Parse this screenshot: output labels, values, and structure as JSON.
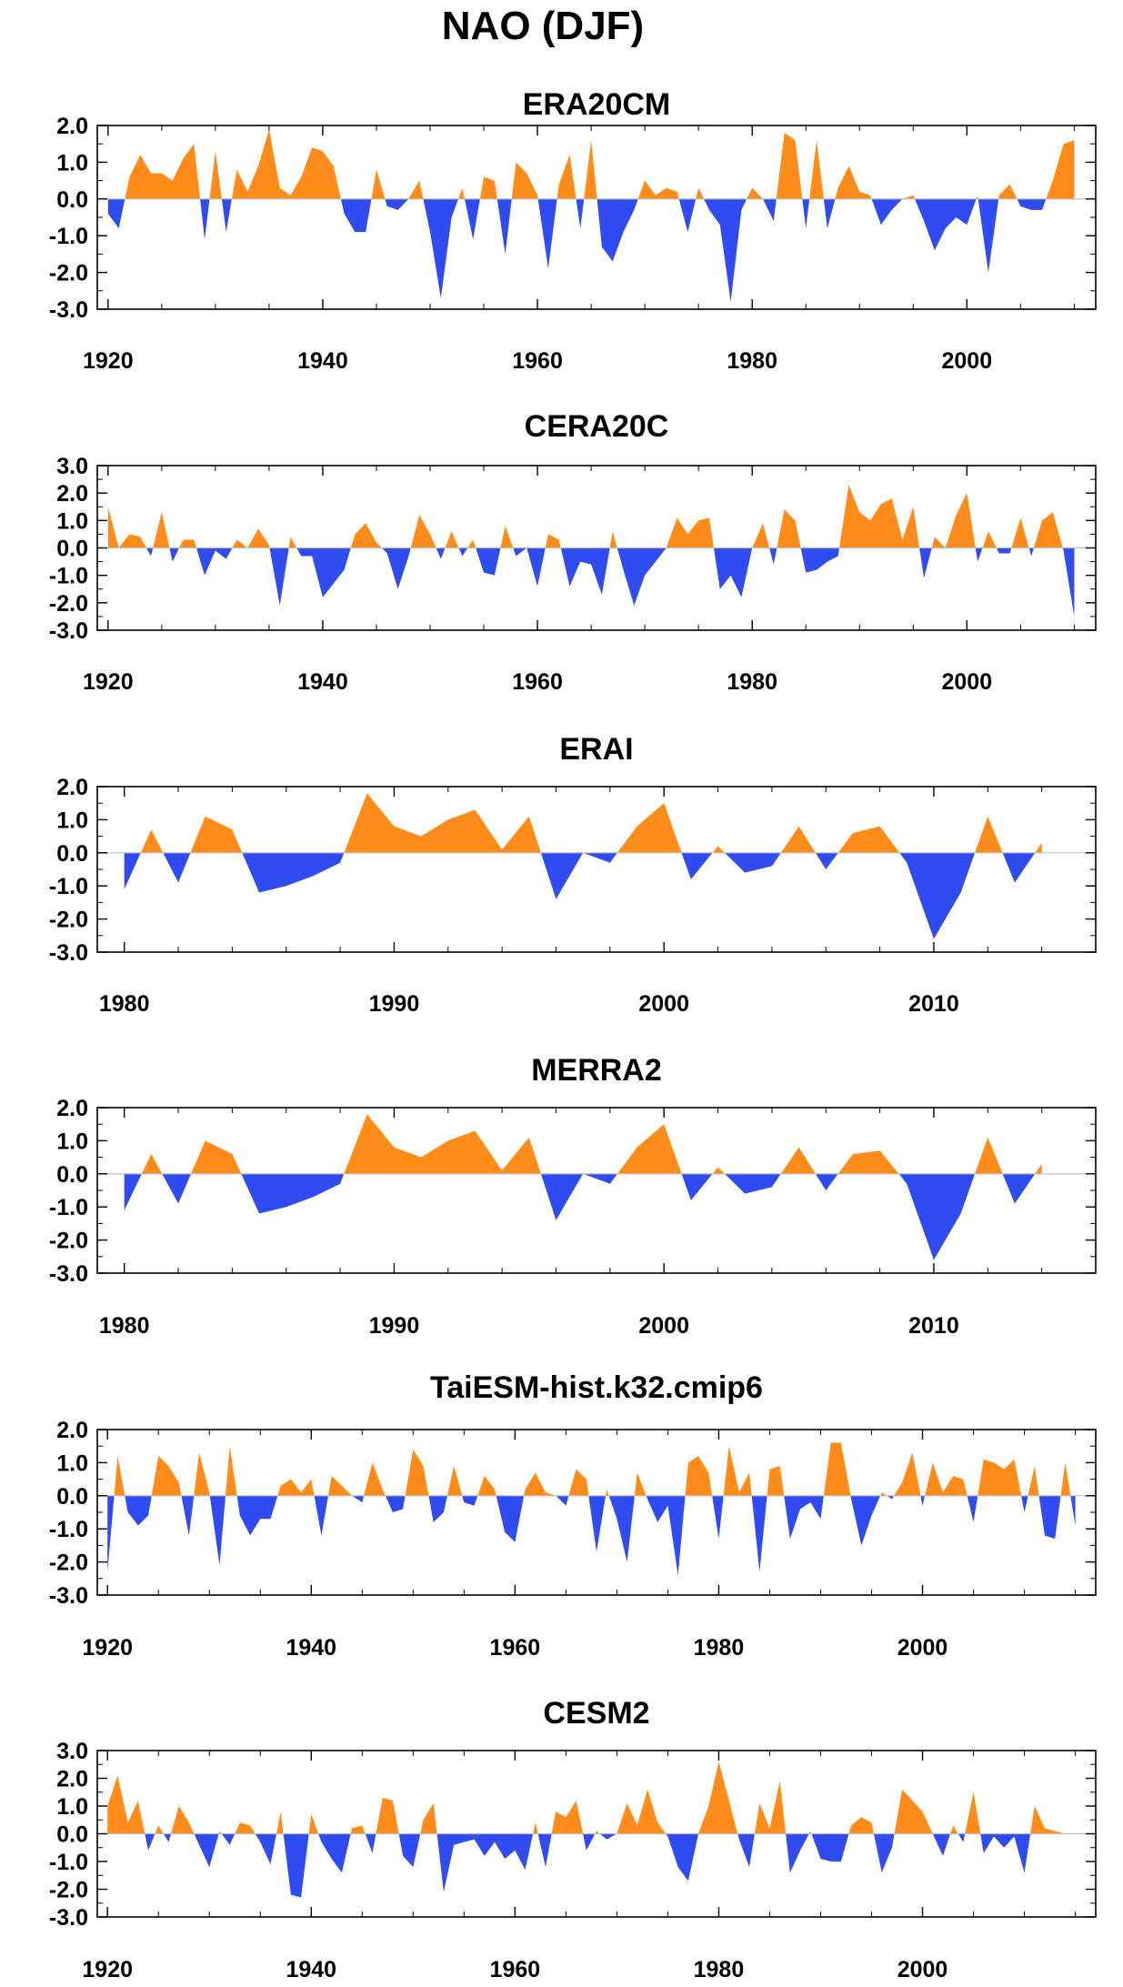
{
  "page": {
    "title": "NAO (DJF)"
  },
  "colors": {
    "positive": "#ff8c1a",
    "negative": "#2f4bf2",
    "axis": "#000000",
    "zero_line": "#bdbdbd"
  },
  "chart_data": [
    {
      "type": "area",
      "title": "ERA20CM",
      "xlim": [
        1919,
        2012
      ],
      "ylim": [
        -3.0,
        2.0
      ],
      "yticks": [
        2.0,
        1.0,
        0.0,
        -1.0,
        -2.0,
        -3.0
      ],
      "ytick_labels": [
        "2.0",
        "1.0",
        "0.0",
        "-1.0",
        "-2.0",
        "-3.0"
      ],
      "xticks": [
        1920,
        1940,
        1960,
        1980,
        2000
      ],
      "xtick_labels": [
        "1920",
        "1940",
        "1960",
        "1980",
        "2000"
      ],
      "x": [
        1920,
        1921,
        1922,
        1923,
        1924,
        1925,
        1926,
        1927,
        1928,
        1929,
        1930,
        1931,
        1932,
        1933,
        1934,
        1935,
        1936,
        1937,
        1938,
        1939,
        1940,
        1941,
        1942,
        1943,
        1944,
        1945,
        1946,
        1947,
        1948,
        1949,
        1950,
        1951,
        1952,
        1953,
        1954,
        1955,
        1956,
        1957,
        1958,
        1959,
        1960,
        1961,
        1962,
        1963,
        1964,
        1965,
        1966,
        1967,
        1968,
        1969,
        1970,
        1971,
        1972,
        1973,
        1974,
        1975,
        1976,
        1977,
        1978,
        1979,
        1980,
        1981,
        1982,
        1983,
        1984,
        1985,
        1986,
        1987,
        1988,
        1989,
        1990,
        1991,
        1992,
        1993,
        1994,
        1995,
        1996,
        1997,
        1998,
        1999,
        2000,
        2001,
        2002,
        2003,
        2004,
        2005,
        2006,
        2007,
        2008,
        2009,
        2010
      ],
      "values": [
        -0.4,
        -0.8,
        0.6,
        1.2,
        0.7,
        0.7,
        0.5,
        1.1,
        1.5,
        -1.1,
        1.3,
        -0.9,
        0.8,
        0.2,
        0.9,
        1.9,
        0.3,
        0.1,
        0.6,
        1.4,
        1.3,
        0.9,
        -0.4,
        -0.9,
        -0.9,
        0.8,
        -0.2,
        -0.3,
        0.0,
        0.5,
        -0.9,
        -2.7,
        -0.5,
        0.3,
        -1.1,
        0.6,
        0.5,
        -1.5,
        1.0,
        0.7,
        0.1,
        -1.9,
        0.4,
        1.2,
        -0.8,
        1.6,
        -1.3,
        -1.7,
        -0.9,
        -0.3,
        0.5,
        0.1,
        0.3,
        0.2,
        -0.9,
        0.3,
        -0.3,
        -0.7,
        -2.8,
        -0.3,
        0.3,
        0.0,
        -0.6,
        1.8,
        1.6,
        -0.8,
        1.6,
        -0.8,
        0.3,
        0.9,
        0.2,
        0.1,
        -0.7,
        -0.3,
        0.0,
        0.1,
        -0.6,
        -1.4,
        -0.8,
        -0.5,
        -0.7,
        0.1,
        -2.0,
        0.1,
        0.4,
        -0.2,
        -0.3,
        -0.3,
        0.5,
        1.5,
        1.6
      ]
    },
    {
      "type": "area",
      "title": "CERA20C",
      "xlim": [
        1919,
        2012
      ],
      "ylim": [
        -3.0,
        3.0
      ],
      "yticks": [
        3.0,
        2.0,
        1.0,
        0.0,
        -1.0,
        -2.0,
        -3.0
      ],
      "ytick_labels": [
        "3.0",
        "2.0",
        "1.0",
        "0.0",
        "-1.0",
        "-2.0",
        "-3.0"
      ],
      "xticks": [
        1920,
        1940,
        1960,
        1980,
        2000
      ],
      "xtick_labels": [
        "1920",
        "1940",
        "1960",
        "1980",
        "2000"
      ],
      "x": [
        1920,
        1921,
        1922,
        1923,
        1924,
        1925,
        1926,
        1927,
        1928,
        1929,
        1930,
        1931,
        1932,
        1933,
        1934,
        1935,
        1936,
        1937,
        1938,
        1939,
        1940,
        1941,
        1942,
        1943,
        1944,
        1945,
        1946,
        1947,
        1948,
        1949,
        1950,
        1951,
        1952,
        1953,
        1954,
        1955,
        1956,
        1957,
        1958,
        1959,
        1960,
        1961,
        1962,
        1963,
        1964,
        1965,
        1966,
        1967,
        1968,
        1969,
        1970,
        1971,
        1972,
        1973,
        1974,
        1975,
        1976,
        1977,
        1978,
        1979,
        1980,
        1981,
        1982,
        1983,
        1984,
        1985,
        1986,
        1987,
        1988,
        1989,
        1990,
        1991,
        1992,
        1993,
        1994,
        1995,
        1996,
        1997,
        1998,
        1999,
        2000,
        2001,
        2002,
        2003,
        2004,
        2005,
        2006,
        2007,
        2008,
        2009,
        2010
      ],
      "values": [
        1.5,
        0.0,
        0.5,
        0.4,
        -0.3,
        1.3,
        -0.5,
        0.3,
        0.3,
        -1.0,
        -0.1,
        -0.4,
        0.3,
        0.0,
        0.7,
        0.1,
        -2.1,
        0.4,
        -0.3,
        -0.3,
        -1.8,
        -1.3,
        -0.8,
        0.5,
        0.9,
        0.2,
        -0.2,
        -1.5,
        -0.3,
        1.2,
        0.5,
        -0.4,
        0.6,
        -0.3,
        0.3,
        -0.9,
        -1.0,
        0.8,
        -0.3,
        0.0,
        -1.4,
        0.5,
        0.3,
        -1.4,
        -0.5,
        -0.6,
        -1.7,
        0.6,
        -0.8,
        -2.1,
        -1.0,
        -0.5,
        0.0,
        1.1,
        0.5,
        1.0,
        1.1,
        -1.5,
        -1.0,
        -1.8,
        0.0,
        0.9,
        -0.6,
        1.4,
        1.0,
        -0.9,
        -0.8,
        -0.5,
        -0.3,
        2.3,
        1.3,
        1.0,
        1.6,
        1.8,
        0.3,
        1.5,
        -1.1,
        0.4,
        0.0,
        1.2,
        2.0,
        -0.5,
        0.6,
        -0.2,
        -0.2,
        1.1,
        -0.3,
        1.0,
        1.3,
        -0.1,
        -2.5
      ]
    },
    {
      "type": "area",
      "title": "ERAI",
      "xlim": [
        1979,
        2016
      ],
      "ylim": [
        -3.0,
        2.0
      ],
      "yticks": [
        2.0,
        1.0,
        0.0,
        -1.0,
        -2.0,
        -3.0
      ],
      "ytick_labels": [
        "2.0",
        "1.0",
        "0.0",
        "-1.0",
        "-2.0",
        "-3.0"
      ],
      "xticks": [
        1980,
        1990,
        2000,
        2010
      ],
      "xtick_labels": [
        "1980",
        "1990",
        "2000",
        "2010"
      ],
      "x": [
        1980,
        1981,
        1982,
        1983,
        1984,
        1985,
        1986,
        1987,
        1988,
        1989,
        1990,
        1991,
        1992,
        1993,
        1994,
        1995,
        1996,
        1997,
        1998,
        1999,
        2000,
        2001,
        2002,
        2003,
        2004,
        2005,
        2006,
        2007,
        2008,
        2009,
        2010,
        2011,
        2012,
        2013,
        2014
      ],
      "values": [
        -1.1,
        0.7,
        -0.9,
        1.1,
        0.7,
        -1.2,
        -1.0,
        -0.7,
        -0.3,
        1.8,
        0.8,
        0.5,
        1.0,
        1.3,
        0.1,
        1.1,
        -1.4,
        0.0,
        -0.3,
        0.8,
        1.5,
        -0.8,
        0.2,
        -0.6,
        -0.4,
        0.8,
        -0.5,
        0.6,
        0.8,
        -0.3,
        -2.6,
        -1.2,
        1.1,
        -0.9,
        0.3
      ]
    },
    {
      "type": "area",
      "title": "MERRA2",
      "xlim": [
        1979,
        2016
      ],
      "ylim": [
        -3.0,
        2.0
      ],
      "yticks": [
        2.0,
        1.0,
        0.0,
        -1.0,
        -2.0,
        -3.0
      ],
      "ytick_labels": [
        "2.0",
        "1.0",
        "0.0",
        "-1.0",
        "-2.0",
        "-3.0"
      ],
      "xticks": [
        1980,
        1990,
        2000,
        2010
      ],
      "xtick_labels": [
        "1980",
        "1990",
        "2000",
        "2010"
      ],
      "x": [
        1980,
        1981,
        1982,
        1983,
        1984,
        1985,
        1986,
        1987,
        1988,
        1989,
        1990,
        1991,
        1992,
        1993,
        1994,
        1995,
        1996,
        1997,
        1998,
        1999,
        2000,
        2001,
        2002,
        2003,
        2004,
        2005,
        2006,
        2007,
        2008,
        2009,
        2010,
        2011,
        2012,
        2013,
        2014
      ],
      "values": [
        -1.1,
        0.6,
        -0.9,
        1.0,
        0.6,
        -1.2,
        -1.0,
        -0.7,
        -0.3,
        1.8,
        0.8,
        0.5,
        1.0,
        1.3,
        0.1,
        1.1,
        -1.4,
        0.0,
        -0.3,
        0.8,
        1.5,
        -0.8,
        0.2,
        -0.6,
        -0.4,
        0.8,
        -0.5,
        0.6,
        0.7,
        -0.3,
        -2.6,
        -1.2,
        1.1,
        -0.9,
        0.3
      ]
    },
    {
      "type": "area",
      "title": "TaiESM-hist.k32.cmip6",
      "xlim": [
        1919,
        2017
      ],
      "ylim": [
        -3.0,
        2.0
      ],
      "yticks": [
        2.0,
        1.0,
        0.0,
        -1.0,
        -2.0,
        -3.0
      ],
      "ytick_labels": [
        "2.0",
        "1.0",
        "0.0",
        "-1.0",
        "-2.0",
        "-3.0"
      ],
      "xticks": [
        1920,
        1940,
        1960,
        1980,
        2000
      ],
      "xtick_labels": [
        "1920",
        "1940",
        "1960",
        "1980",
        "2000"
      ],
      "x": [
        1920,
        1921,
        1922,
        1923,
        1924,
        1925,
        1926,
        1927,
        1928,
        1929,
        1930,
        1931,
        1932,
        1933,
        1934,
        1935,
        1936,
        1937,
        1938,
        1939,
        1940,
        1941,
        1942,
        1943,
        1944,
        1945,
        1946,
        1947,
        1948,
        1949,
        1950,
        1951,
        1952,
        1953,
        1954,
        1955,
        1956,
        1957,
        1958,
        1959,
        1960,
        1961,
        1962,
        1963,
        1964,
        1965,
        1966,
        1967,
        1968,
        1969,
        1970,
        1971,
        1972,
        1973,
        1974,
        1975,
        1976,
        1977,
        1978,
        1979,
        1980,
        1981,
        1982,
        1983,
        1984,
        1985,
        1986,
        1987,
        1988,
        1989,
        1990,
        1991,
        1992,
        1993,
        1994,
        1995,
        1996,
        1997,
        1998,
        1999,
        2000,
        2001,
        2002,
        2003,
        2004,
        2005,
        2006,
        2007,
        2008,
        2009,
        2010,
        2011,
        2012,
        2013,
        2014,
        2015
      ],
      "values": [
        -2.3,
        1.2,
        -0.5,
        -0.9,
        -0.6,
        1.2,
        0.9,
        0.4,
        -1.2,
        1.3,
        0.1,
        -2.1,
        1.5,
        -0.6,
        -1.2,
        -0.7,
        -0.7,
        0.3,
        0.5,
        0.1,
        0.5,
        -1.2,
        0.6,
        0.3,
        0.0,
        -0.2,
        1.0,
        0.2,
        -0.5,
        -0.4,
        1.4,
        0.9,
        -0.8,
        -0.5,
        0.9,
        -0.2,
        -0.3,
        0.6,
        0.2,
        -1.1,
        -1.4,
        0.2,
        0.7,
        0.1,
        0.0,
        -0.3,
        0.8,
        0.5,
        -1.7,
        0.2,
        -0.7,
        -2.0,
        0.7,
        -0.1,
        -0.8,
        -0.3,
        -2.4,
        1.0,
        1.2,
        0.7,
        -1.3,
        1.5,
        0.1,
        0.7,
        -2.3,
        0.8,
        0.9,
        -1.3,
        -0.4,
        -0.2,
        -0.7,
        1.6,
        1.6,
        -0.1,
        -1.5,
        -0.6,
        0.1,
        -0.1,
        0.4,
        1.3,
        -0.3,
        1.0,
        0.1,
        0.6,
        0.5,
        -0.8,
        1.1,
        1.0,
        0.8,
        1.1,
        -0.5,
        0.9,
        -1.2,
        -1.3,
        1.0,
        -0.9
      ]
    },
    {
      "type": "area",
      "title": "CESM2",
      "xlim": [
        1919,
        2017
      ],
      "ylim": [
        -3.0,
        3.0
      ],
      "yticks": [
        3.0,
        2.0,
        1.0,
        0.0,
        -1.0,
        -2.0,
        -3.0
      ],
      "ytick_labels": [
        "3.0",
        "2.0",
        "1.0",
        "0.0",
        "-1.0",
        "-2.0",
        "-3.0"
      ],
      "xticks": [
        1920,
        1940,
        1960,
        1980,
        2000
      ],
      "xtick_labels": [
        "1920",
        "1940",
        "1960",
        "1980",
        "2000"
      ],
      "x": [
        1920,
        1921,
        1922,
        1923,
        1924,
        1925,
        1926,
        1927,
        1928,
        1929,
        1930,
        1931,
        1932,
        1933,
        1934,
        1935,
        1936,
        1937,
        1938,
        1939,
        1940,
        1941,
        1942,
        1943,
        1944,
        1945,
        1946,
        1947,
        1948,
        1949,
        1950,
        1951,
        1952,
        1953,
        1954,
        1955,
        1956,
        1957,
        1958,
        1959,
        1960,
        1961,
        1962,
        1963,
        1964,
        1965,
        1966,
        1967,
        1968,
        1969,
        1970,
        1971,
        1972,
        1973,
        1974,
        1975,
        1976,
        1977,
        1978,
        1979,
        1980,
        1981,
        1982,
        1983,
        1984,
        1985,
        1986,
        1987,
        1988,
        1989,
        1990,
        1991,
        1992,
        1993,
        1994,
        1995,
        1996,
        1997,
        1998,
        1999,
        2000,
        2001,
        2002,
        2003,
        2004,
        2005,
        2006,
        2007,
        2008,
        2009,
        2010,
        2011,
        2012,
        2013,
        2014,
        2015
      ],
      "values": [
        1.0,
        2.1,
        0.4,
        1.2,
        -0.6,
        0.3,
        -0.3,
        1.0,
        0.4,
        -0.4,
        -1.2,
        0.1,
        -0.4,
        0.4,
        0.3,
        -0.3,
        -1.1,
        0.8,
        -2.2,
        -2.3,
        0.7,
        -0.3,
        -0.9,
        -1.4,
        0.2,
        0.3,
        -0.7,
        1.3,
        1.2,
        -0.8,
        -1.2,
        0.5,
        1.1,
        -2.1,
        -0.4,
        -0.3,
        -0.2,
        -0.8,
        -0.3,
        -0.9,
        -0.6,
        -1.3,
        0.4,
        -1.2,
        0.8,
        0.6,
        1.2,
        -0.6,
        0.1,
        -0.2,
        0.0,
        1.1,
        0.3,
        1.6,
        0.4,
        -0.1,
        -1.2,
        -1.7,
        0.0,
        1.0,
        2.6,
        1.2,
        -0.2,
        -1.2,
        1.1,
        0.2,
        1.9,
        -1.4,
        -0.6,
        0.1,
        -0.9,
        -1.0,
        -1.0,
        0.3,
        0.6,
        0.4,
        -1.4,
        -0.5,
        1.6,
        1.2,
        0.8,
        0.0,
        -0.8,
        0.3,
        -0.3,
        1.5,
        -0.7,
        -0.1,
        -0.5,
        -0.1,
        -1.4,
        1.0,
        0.2,
        0.1,
        0.0,
        0.0
      ]
    }
  ]
}
